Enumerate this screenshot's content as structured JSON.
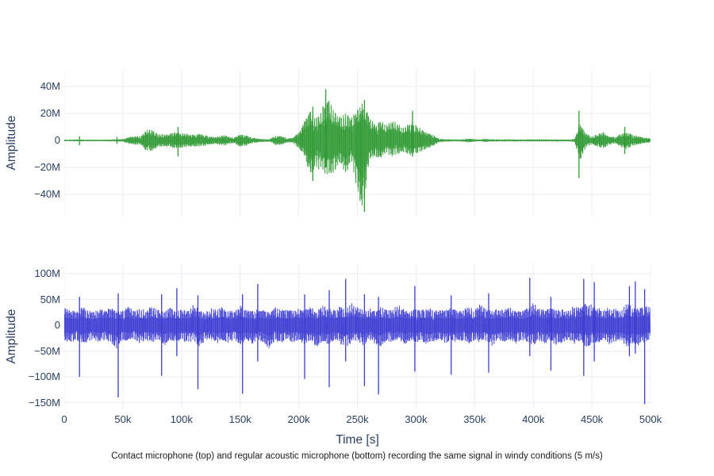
{
  "figure": {
    "background": "#ffffff",
    "text_color": "#2a3f5f",
    "grid_color": "#e9ecf4",
    "caption": "Contact microphone (top) and regular acoustic microphone (bottom) recording the same signal in windy conditions (5 m/s)",
    "x_axis": {
      "title": "Time [s]",
      "ticks": [
        {
          "label": "0",
          "value": 0
        },
        {
          "label": "50k",
          "value": 50
        },
        {
          "label": "100k",
          "value": 100
        },
        {
          "label": "150k",
          "value": 150
        },
        {
          "label": "200k",
          "value": 200
        },
        {
          "label": "250k",
          "value": 250
        },
        {
          "label": "300k",
          "value": 300
        },
        {
          "label": "350k",
          "value": 350
        },
        {
          "label": "400k",
          "value": 400
        },
        {
          "label": "450k",
          "value": 450
        },
        {
          "label": "500k",
          "value": 500
        }
      ]
    }
  },
  "chart_data": [
    {
      "type": "line",
      "name": "contact-microphone-waveform",
      "description": "Contact microphone recording (top subplot)",
      "color": "#319a35",
      "color_light": "#6fbf72",
      "xlabel": "Time [s]",
      "ylabel": "Amplitude",
      "x_range_k": [
        0,
        500
      ],
      "ylim_M": [
        -56,
        53
      ],
      "grid": true,
      "yticks": [
        {
          "label": "40M",
          "value": 40
        },
        {
          "label": "20M",
          "value": 20
        },
        {
          "label": "0",
          "value": 0
        },
        {
          "label": "−20M",
          "value": -20
        },
        {
          "label": "−40M",
          "value": -40
        }
      ],
      "envelope_step_k": 5,
      "upper_M": [
        0.6,
        0.6,
        0.7,
        0.7,
        0.6,
        0.6,
        0.6,
        0.6,
        0.7,
        0.9,
        1.0,
        2.5,
        3.5,
        3.0,
        8.0,
        8.0,
        5.0,
        4.5,
        5.0,
        6.0,
        5.5,
        5.0,
        4.5,
        5.0,
        4.0,
        3.0,
        2.5,
        4.0,
        3.0,
        2.0,
        5.0,
        4.0,
        2.0,
        1.5,
        1.0,
        1.0,
        3.5,
        3.5,
        1.5,
        2.0,
        6.0,
        15,
        22,
        18,
        25,
        32,
        22,
        18,
        20,
        18,
        25,
        30,
        18,
        12,
        15,
        12,
        15,
        12,
        10,
        14,
        12,
        8,
        6,
        4,
        1.2,
        0.9,
        0.8,
        0.8,
        0.9,
        1.4,
        0.9,
        0.8,
        1.2,
        0.8,
        0.8,
        0.8,
        0.8,
        0.8,
        0.8,
        0.8,
        0.8,
        0.8,
        0.8,
        0.8,
        0.8,
        0.8,
        0.8,
        1.0,
        12,
        5,
        3,
        5,
        6,
        3,
        2.5,
        5,
        6.5,
        4,
        3,
        2,
        1.5
      ],
      "lower_M": [
        -0.6,
        -0.6,
        -0.7,
        -0.7,
        -0.6,
        -0.6,
        -0.6,
        -0.6,
        -0.7,
        -0.9,
        -1.0,
        -2.5,
        -3.5,
        -3.0,
        -8.0,
        -8.0,
        -5.0,
        -4.5,
        -5.0,
        -6.0,
        -5.5,
        -5.0,
        -4.5,
        -5.0,
        -4.0,
        -3.0,
        -2.5,
        -4.0,
        -3.0,
        -2.0,
        -5.0,
        -4.0,
        -2.0,
        -1.5,
        -1.0,
        -1.0,
        -3.5,
        -3.5,
        -1.5,
        -2.0,
        -6.0,
        -12,
        -28,
        -20,
        -24,
        -26,
        -25,
        -16,
        -25,
        -16,
        -40,
        -52,
        -14,
        -12,
        -14,
        -10,
        -12,
        -10,
        -9,
        -11,
        -10,
        -8,
        -6,
        -4,
        -1.2,
        -0.9,
        -0.8,
        -0.8,
        -0.9,
        -1.4,
        -0.9,
        -0.8,
        -1.2,
        -0.8,
        -0.8,
        -0.8,
        -0.8,
        -0.8,
        -0.8,
        -0.8,
        -0.8,
        -0.8,
        -0.8,
        -0.8,
        -0.8,
        -0.8,
        -0.8,
        -1.0,
        -15,
        -5,
        -3,
        -5,
        -6,
        -3,
        -2.5,
        -5,
        -6.5,
        -4,
        -3,
        -2,
        -1.5
      ],
      "transients": [
        {
          "x_k": 13,
          "hi_M": 3,
          "lo_M": -3.5
        },
        {
          "x_k": 45,
          "hi_M": 2.5,
          "lo_M": -2.5
        },
        {
          "x_k": 97,
          "hi_M": 10,
          "lo_M": -12
        },
        {
          "x_k": 212,
          "hi_M": 25,
          "lo_M": -30
        },
        {
          "x_k": 223,
          "hi_M": 38,
          "lo_M": -20
        },
        {
          "x_k": 253,
          "hi_M": 20,
          "lo_M": -40
        },
        {
          "x_k": 256,
          "hi_M": 30,
          "lo_M": -53
        },
        {
          "x_k": 297,
          "hi_M": 22,
          "lo_M": -12
        },
        {
          "x_k": 439,
          "hi_M": 22,
          "lo_M": -28
        },
        {
          "x_k": 478,
          "hi_M": 10,
          "lo_M": -10
        }
      ]
    },
    {
      "type": "line",
      "name": "acoustic-microphone-waveform",
      "description": "Regular acoustic microphone recording (bottom subplot)",
      "color": "#3d3dd2",
      "color_light": "#8080e0",
      "xlabel": "Time [s]",
      "ylabel": "Amplitude",
      "x_range_k": [
        0,
        500
      ],
      "ylim_M": [
        -168,
        117
      ],
      "grid": true,
      "yticks": [
        {
          "label": "100M",
          "value": 100
        },
        {
          "label": "50M",
          "value": 50
        },
        {
          "label": "0",
          "value": 0
        },
        {
          "label": "−50M",
          "value": -50
        },
        {
          "label": "−100M",
          "value": -100
        },
        {
          "label": "−150M",
          "value": -150
        }
      ],
      "envelope_step_k": 5,
      "upper_M": [
        35,
        30,
        28,
        38,
        30,
        26,
        32,
        30,
        34,
        28,
        30,
        36,
        28,
        32,
        30,
        38,
        30,
        26,
        34,
        30,
        32,
        28,
        42,
        30,
        26,
        34,
        30,
        36,
        28,
        30,
        40,
        30,
        28,
        34,
        30,
        26,
        38,
        30,
        32,
        28,
        34,
        30,
        36,
        28,
        40,
        34,
        30,
        38,
        32,
        44,
        36,
        30,
        34,
        28,
        36,
        30,
        32,
        40,
        30,
        28,
        34,
        30,
        36,
        28,
        32,
        30,
        34,
        28,
        30,
        38,
        30,
        44,
        32,
        28,
        34,
        30,
        36,
        30,
        28,
        34,
        46,
        34,
        30,
        36,
        30,
        32,
        28,
        40,
        34,
        46,
        40,
        34,
        30,
        36,
        32,
        30,
        44,
        38,
        34,
        40,
        36
      ],
      "lower_M": [
        -30,
        -34,
        -28,
        -40,
        -32,
        -28,
        -34,
        -30,
        -36,
        -46,
        -30,
        -32,
        -28,
        -36,
        -30,
        -34,
        -28,
        -40,
        -30,
        -34,
        -28,
        -36,
        -30,
        -44,
        -30,
        -28,
        -36,
        -30,
        -34,
        -28,
        -38,
        -30,
        -36,
        -28,
        -34,
        -46,
        -30,
        -36,
        -28,
        -34,
        -30,
        -38,
        -30,
        -44,
        -34,
        -40,
        -30,
        -36,
        -44,
        -34,
        -30,
        -40,
        -30,
        -36,
        -44,
        -30,
        -34,
        -28,
        -38,
        -30,
        -34,
        -30,
        -40,
        -32,
        -28,
        -36,
        -30,
        -34,
        -30,
        -38,
        -30,
        -34,
        -30,
        -40,
        -30,
        -34,
        -28,
        -36,
        -30,
        -34,
        -40,
        -30,
        -36,
        -30,
        -40,
        -34,
        -28,
        -38,
        -30,
        -44,
        -40,
        -34,
        -30,
        -38,
        -32,
        -30,
        -42,
        -36,
        -40,
        -34,
        -30
      ],
      "transients": [
        {
          "x_k": 13,
          "hi_M": 55,
          "lo_M": -100
        },
        {
          "x_k": 46,
          "hi_M": 62,
          "lo_M": -140
        },
        {
          "x_k": 83,
          "hi_M": 60,
          "lo_M": -98
        },
        {
          "x_k": 96,
          "hi_M": 72,
          "lo_M": -60
        },
        {
          "x_k": 114,
          "hi_M": 58,
          "lo_M": -124
        },
        {
          "x_k": 152,
          "hi_M": 60,
          "lo_M": -133
        },
        {
          "x_k": 165,
          "hi_M": 80,
          "lo_M": -70
        },
        {
          "x_k": 205,
          "hi_M": 60,
          "lo_M": -104
        },
        {
          "x_k": 226,
          "hi_M": 68,
          "lo_M": -120
        },
        {
          "x_k": 240,
          "hi_M": 90,
          "lo_M": -70
        },
        {
          "x_k": 256,
          "hi_M": 60,
          "lo_M": -118
        },
        {
          "x_k": 268,
          "hi_M": 55,
          "lo_M": -134
        },
        {
          "x_k": 299,
          "hi_M": 76,
          "lo_M": -90
        },
        {
          "x_k": 330,
          "hi_M": 58,
          "lo_M": -96
        },
        {
          "x_k": 362,
          "hi_M": 62,
          "lo_M": -92
        },
        {
          "x_k": 397,
          "hi_M": 92,
          "lo_M": -60
        },
        {
          "x_k": 415,
          "hi_M": 55,
          "lo_M": -88
        },
        {
          "x_k": 443,
          "hi_M": 90,
          "lo_M": -98
        },
        {
          "x_k": 452,
          "hi_M": 84,
          "lo_M": -70
        },
        {
          "x_k": 482,
          "hi_M": 76,
          "lo_M": -60
        },
        {
          "x_k": 487,
          "hi_M": 85,
          "lo_M": -55
        },
        {
          "x_k": 495,
          "hi_M": 70,
          "lo_M": -153
        }
      ]
    }
  ]
}
